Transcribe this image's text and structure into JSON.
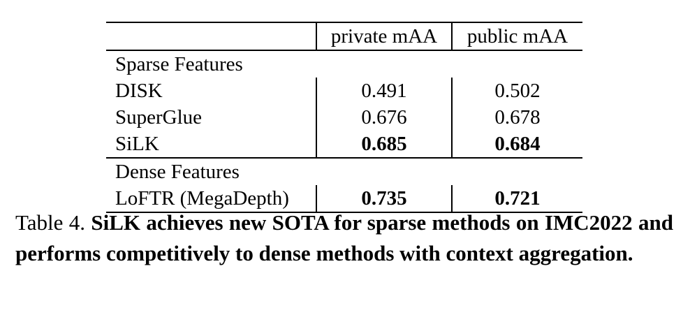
{
  "table": {
    "header": {
      "col1": "",
      "col2": "private mAA",
      "col3": "public mAA"
    },
    "sections": [
      {
        "title": "Sparse Features",
        "rows": [
          {
            "method": "DISK",
            "private": "0.491",
            "public": "0.502"
          },
          {
            "method": "SuperGlue",
            "private": "0.676",
            "public": "0.678"
          },
          {
            "method": "SiLK",
            "private": "0.685",
            "public": "0.684"
          }
        ]
      },
      {
        "title": "Dense Features",
        "rows": [
          {
            "method": "LoFTR (MegaDepth)",
            "private": "0.735",
            "public": "0.721"
          }
        ]
      }
    ]
  },
  "caption": {
    "label": "Table 4.",
    "text": "SiLK achieves new SOTA for sparse methods on IMC2022 and performs competitively to dense methods with context aggregation."
  }
}
